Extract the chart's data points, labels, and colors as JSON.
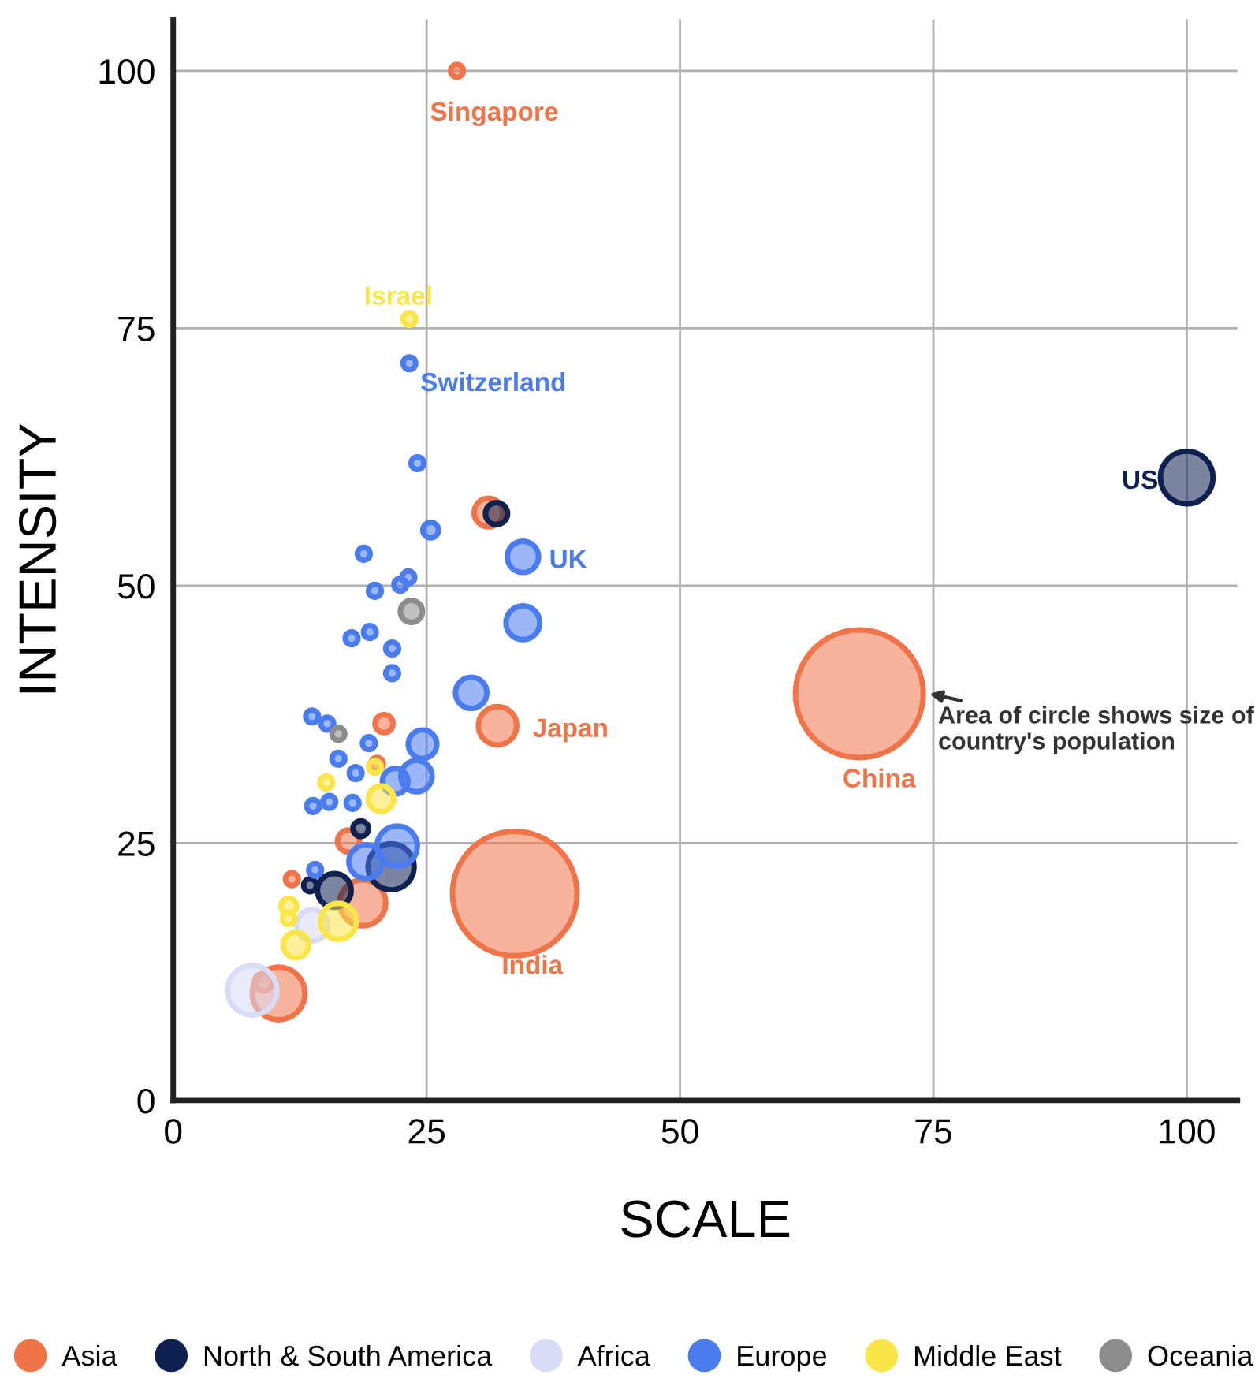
{
  "chart_data": {
    "type": "bubble",
    "xlabel": "SCALE",
    "ylabel": "INTENSITY",
    "xlim": [
      0,
      105
    ],
    "ylim": [
      0,
      105
    ],
    "xticks": [
      0,
      25,
      50,
      75,
      100
    ],
    "yticks": [
      0,
      25,
      50,
      75,
      100
    ],
    "grid": true,
    "legend": "bottom",
    "marker": "circle",
    "series": [
      {
        "name": "Asia",
        "color": "#f07448",
        "x": [
          28,
          67.7,
          33.7,
          32,
          31.1,
          20.8,
          20.1,
          17.3,
          18.7,
          11.7,
          10.4,
          8.9
        ],
        "values": [
          100,
          39.5,
          20.1,
          36.4,
          57.1,
          36.6,
          32.7,
          25.2,
          19.2,
          21.5,
          10.4,
          11.5
        ],
        "sizes": [
          0.01,
          1,
          0.95,
          0.09,
          0.05,
          0.02,
          0.01,
          0.03,
          0.13,
          0.01,
          0.17,
          0.02
        ]
      },
      {
        "name": "North & South America",
        "color": "#0f2150",
        "x": [
          100,
          31.9,
          18.5,
          21.5,
          15.9,
          13.5
        ],
        "values": [
          60.5,
          57,
          26.4,
          22.7,
          20.4,
          20.9
        ],
        "sizes": [
          0.17,
          0.03,
          0.015,
          0.13,
          0.07,
          0.01
        ]
      },
      {
        "name": "Africa",
        "color": "#d9dcf7",
        "x": [
          7.8,
          13.7
        ],
        "values": [
          10.7,
          17
        ],
        "sizes": [
          0.15,
          0.06
        ]
      },
      {
        "name": "Europe",
        "color": "#4a7cf0",
        "x": [
          23.3,
          24.1,
          25.4,
          34.5,
          18.8,
          23.2,
          22.4,
          19.9,
          34.5,
          17.6,
          19.4,
          21.6,
          21.6,
          29.4,
          13.7,
          15.2,
          19.3,
          24.6,
          16.3,
          18,
          24,
          21.9,
          13.8,
          15.4,
          17.7,
          22.1,
          19,
          14
        ],
        "values": [
          71.6,
          61.9,
          55.4,
          52.8,
          53.1,
          50.8,
          50.1,
          49.5,
          46.4,
          44.9,
          45.5,
          43.9,
          41.5,
          39.6,
          37.3,
          36.6,
          34.7,
          34.6,
          33.2,
          31.8,
          31.5,
          31,
          28.6,
          29,
          28.9,
          24.7,
          23.2,
          22.4
        ],
        "sizes": [
          0.01,
          0.01,
          0.015,
          0.06,
          0.01,
          0.01,
          0.01,
          0.01,
          0.07,
          0.01,
          0.01,
          0.01,
          0.01,
          0.06,
          0.01,
          0.01,
          0.01,
          0.05,
          0.01,
          0.01,
          0.06,
          0.04,
          0.01,
          0.01,
          0.01,
          0.1,
          0.07,
          0.01
        ]
      },
      {
        "name": "Middle East",
        "color": "#fbe64a",
        "x": [
          23.3,
          15.1,
          20.5,
          19.9,
          11.4,
          11.4,
          12.1,
          16.3
        ],
        "values": [
          75.9,
          30.9,
          29.3,
          32.4,
          18.9,
          17.7,
          15.1,
          17.4
        ],
        "sizes": [
          0.01,
          0.01,
          0.04,
          0.01,
          0.015,
          0.01,
          0.04,
          0.08
        ]
      },
      {
        "name": "Oceania",
        "color": "#8c8c8c",
        "x": [
          23.5,
          16.3
        ],
        "values": [
          47.5,
          35.6
        ],
        "sizes": [
          0.03,
          0.01
        ]
      }
    ],
    "annotations": [
      {
        "text": "Singapore",
        "x": 28,
        "y": 100
      },
      {
        "text": "Israel",
        "x": 23.3,
        "y": 75.9
      },
      {
        "text": "Switzerland",
        "x": 23.3,
        "y": 71.6
      },
      {
        "text": "UK",
        "x": 34.5,
        "y": 52.8
      },
      {
        "text": "Japan",
        "x": 32,
        "y": 36.4
      },
      {
        "text": "China",
        "x": 67.7,
        "y": 39.5
      },
      {
        "text": "India",
        "x": 33.7,
        "y": 20.1
      },
      {
        "text": "US",
        "x": 100,
        "y": 60.5
      },
      {
        "text": "Area of circle shows size of country's population",
        "x": 74.2,
        "y": 39.6
      }
    ]
  }
}
